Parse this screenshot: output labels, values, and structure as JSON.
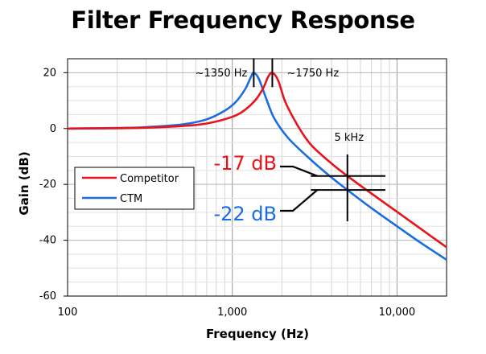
{
  "chart_data": {
    "type": "line",
    "title": "Filter Frequency Response",
    "xlabel": "Frequency (Hz)",
    "ylabel": "Gain (dB)",
    "xscale": "log",
    "xlim": [
      100,
      20000
    ],
    "ylim": [
      -60,
      25
    ],
    "x_ticks": [
      100,
      1000,
      10000
    ],
    "x_tick_labels": [
      "100",
      "1,000",
      "10,000"
    ],
    "y_ticks": [
      20,
      0,
      -20,
      -40,
      -60
    ],
    "y_tick_labels": [
      "20",
      "0",
      "-20",
      "-40",
      "-60"
    ],
    "grid": true,
    "legend_position": "left",
    "series": [
      {
        "name": "Competitor",
        "color": "#e8131b",
        "x": [
          100,
          200,
          300,
          500,
          700,
          1000,
          1200,
          1400,
          1550,
          1650,
          1750,
          1900,
          2100,
          2500,
          3000,
          4000,
          5000,
          7000,
          10000,
          14000,
          20000
        ],
        "y": [
          0.0,
          0.1,
          0.3,
          0.9,
          1.8,
          4.2,
          6.8,
          10.6,
          14.8,
          18.5,
          20.0,
          17.2,
          9.5,
          1.0,
          -5.8,
          -12.5,
          -17.0,
          -23.3,
          -29.8,
          -36.0,
          -42.5
        ]
      },
      {
        "name": "CTM",
        "color": "#1a6de0",
        "x": [
          100,
          200,
          300,
          500,
          700,
          900,
          1050,
          1200,
          1300,
          1350,
          1450,
          1600,
          1800,
          2200,
          3000,
          4000,
          5000,
          7000,
          10000,
          14000,
          20000
        ],
        "y": [
          0.0,
          0.2,
          0.5,
          1.5,
          3.3,
          6.4,
          9.5,
          14.2,
          18.6,
          20.0,
          17.8,
          11.0,
          3.6,
          -3.6,
          -11.2,
          -17.5,
          -22.0,
          -28.5,
          -35.0,
          -41.0,
          -47.0
        ]
      }
    ],
    "annotations": [
      {
        "text": "~1350 Hz",
        "x": 1350,
        "marker_y": 20
      },
      {
        "text": "~1750 Hz",
        "x": 1750,
        "marker_y": 20
      },
      {
        "text": "5 kHz",
        "x": 5000
      },
      {
        "text": "-17 dB",
        "series": "Competitor",
        "x": 5000,
        "y": -17
      },
      {
        "text": "-22 dB",
        "series": "CTM",
        "x": 5000,
        "y": -22
      }
    ]
  }
}
